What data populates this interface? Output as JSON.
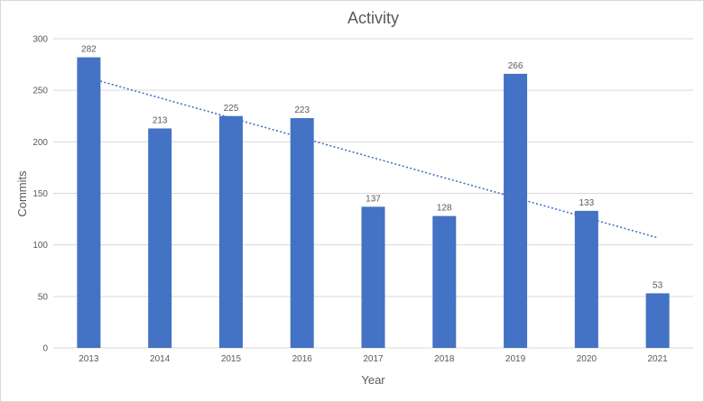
{
  "chart_data": {
    "type": "bar",
    "title": "Activity",
    "xlabel": "Year",
    "ylabel": "Commits",
    "categories": [
      "2013",
      "2014",
      "2015",
      "2016",
      "2017",
      "2018",
      "2019",
      "2020",
      "2021"
    ],
    "values": [
      282,
      213,
      225,
      223,
      137,
      128,
      266,
      133,
      53
    ],
    "ylim": [
      0,
      300
    ],
    "ytick_step": 50,
    "yticks": [
      0,
      50,
      100,
      150,
      200,
      250,
      300
    ],
    "grid": true,
    "legend": false,
    "data_labels": true,
    "trendline": {
      "style": "dotted",
      "start_value": 262,
      "end_value": 107
    }
  },
  "colors": {
    "bar": "#4472C4",
    "trendline": "#4472C4",
    "text": "#595959",
    "grid": "#D9D9D9",
    "border": "#D9D9D9",
    "background": "#FFFFFF"
  }
}
